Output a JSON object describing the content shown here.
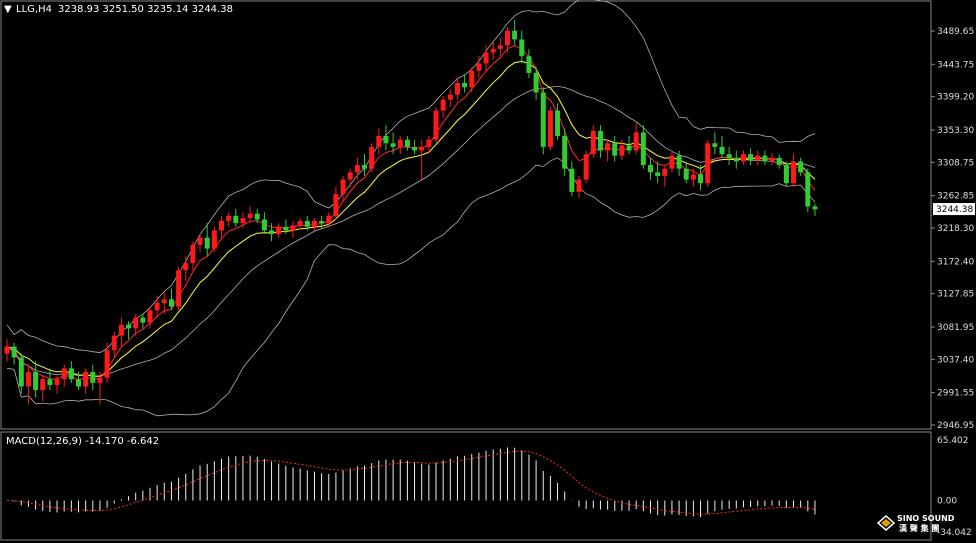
{
  "header": {
    "symbol": "LLG,H4",
    "ohlc": "3238.93 3251.50 3235.14 3244.38"
  },
  "chart_data": {
    "type": "candlestick",
    "price_axis": {
      "ticks": [
        "3489.65",
        "3443.75",
        "3399.20",
        "3353.30",
        "3308.75",
        "3262.85",
        "3218.30",
        "3172.40",
        "3127.85",
        "3081.95",
        "3037.40",
        "2991.55",
        "2946.95"
      ],
      "current_price": "3244.38",
      "ylim": [
        2946.95,
        3489.65
      ]
    },
    "candles": [
      [
        3045,
        3065,
        3035,
        3055
      ],
      [
        3055,
        3060,
        3030,
        3040
      ],
      [
        3040,
        3045,
        2990,
        3000
      ],
      [
        3000,
        3030,
        2975,
        3020
      ],
      [
        3020,
        3035,
        2985,
        2995
      ],
      [
        2995,
        3015,
        2980,
        3010
      ],
      [
        3010,
        3025,
        2995,
        3002
      ],
      [
        3002,
        3015,
        2990,
        3010
      ],
      [
        3010,
        3030,
        3000,
        3025
      ],
      [
        3025,
        3035,
        3005,
        3010
      ],
      [
        3010,
        3020,
        2995,
        3000
      ],
      [
        3000,
        3025,
        2990,
        3020
      ],
      [
        3020,
        3030,
        2995,
        3005
      ],
      [
        3005,
        3020,
        2975,
        3012
      ],
      [
        3012,
        3060,
        3005,
        3050
      ],
      [
        3050,
        3075,
        3040,
        3070
      ],
      [
        3070,
        3095,
        3055,
        3085
      ],
      [
        3085,
        3090,
        3065,
        3080
      ],
      [
        3080,
        3100,
        3070,
        3095
      ],
      [
        3095,
        3100,
        3080,
        3088
      ],
      [
        3088,
        3110,
        3080,
        3105
      ],
      [
        3105,
        3125,
        3095,
        3115
      ],
      [
        3115,
        3130,
        3100,
        3120
      ],
      [
        3120,
        3135,
        3105,
        3110
      ],
      [
        3110,
        3165,
        3105,
        3160
      ],
      [
        3160,
        3180,
        3145,
        3170
      ],
      [
        3170,
        3200,
        3160,
        3195
      ],
      [
        3195,
        3210,
        3185,
        3205
      ],
      [
        3205,
        3225,
        3180,
        3190
      ],
      [
        3190,
        3220,
        3185,
        3215
      ],
      [
        3215,
        3235,
        3205,
        3228
      ],
      [
        3228,
        3240,
        3220,
        3235
      ],
      [
        3235,
        3245,
        3220,
        3225
      ],
      [
        3225,
        3240,
        3218,
        3232
      ],
      [
        3232,
        3248,
        3225,
        3238
      ],
      [
        3238,
        3245,
        3225,
        3230
      ],
      [
        3230,
        3240,
        3210,
        3215
      ],
      [
        3215,
        3225,
        3200,
        3210
      ],
      [
        3210,
        3225,
        3205,
        3220
      ],
      [
        3220,
        3230,
        3210,
        3215
      ],
      [
        3215,
        3228,
        3205,
        3222
      ],
      [
        3222,
        3232,
        3215,
        3228
      ],
      [
        3228,
        3235,
        3215,
        3220
      ],
      [
        3220,
        3232,
        3212,
        3228
      ],
      [
        3228,
        3235,
        3218,
        3225
      ],
      [
        3225,
        3240,
        3220,
        3235
      ],
      [
        3235,
        3275,
        3230,
        3265
      ],
      [
        3265,
        3290,
        3255,
        3285
      ],
      [
        3285,
        3300,
        3275,
        3295
      ],
      [
        3295,
        3315,
        3285,
        3305
      ],
      [
        3305,
        3320,
        3290,
        3300
      ],
      [
        3300,
        3335,
        3295,
        3330
      ],
      [
        3330,
        3355,
        3320,
        3345
      ],
      [
        3345,
        3360,
        3325,
        3335
      ],
      [
        3335,
        3350,
        3320,
        3330
      ],
      [
        3330,
        3345,
        3320,
        3340
      ],
      [
        3340,
        3345,
        3325,
        3330
      ],
      [
        3330,
        3340,
        3320,
        3325
      ],
      [
        3325,
        3340,
        3285,
        3330
      ],
      [
        3330,
        3345,
        3320,
        3340
      ],
      [
        3340,
        3385,
        3335,
        3380
      ],
      [
        3380,
        3400,
        3370,
        3395
      ],
      [
        3395,
        3410,
        3385,
        3402
      ],
      [
        3402,
        3425,
        3395,
        3418
      ],
      [
        3418,
        3430,
        3405,
        3412
      ],
      [
        3412,
        3440,
        3405,
        3435
      ],
      [
        3435,
        3455,
        3425,
        3445
      ],
      [
        3445,
        3470,
        3435,
        3460
      ],
      [
        3460,
        3475,
        3450,
        3465
      ],
      [
        3465,
        3480,
        3455,
        3470
      ],
      [
        3470,
        3495,
        3460,
        3490
      ],
      [
        3490,
        3505,
        3470,
        3478
      ],
      [
        3478,
        3490,
        3445,
        3455
      ],
      [
        3455,
        3465,
        3425,
        3432
      ],
      [
        3432,
        3440,
        3395,
        3405
      ],
      [
        3405,
        3412,
        3320,
        3330
      ],
      [
        3330,
        3385,
        3325,
        3380
      ],
      [
        3380,
        3390,
        3340,
        3345
      ],
      [
        3345,
        3355,
        3290,
        3300
      ],
      [
        3300,
        3310,
        3262,
        3268
      ],
      [
        3268,
        3290,
        3260,
        3285
      ],
      [
        3285,
        3325,
        3280,
        3320
      ],
      [
        3320,
        3360,
        3315,
        3352
      ],
      [
        3352,
        3360,
        3315,
        3325
      ],
      [
        3325,
        3340,
        3310,
        3335
      ],
      [
        3335,
        3345,
        3310,
        3318
      ],
      [
        3318,
        3340,
        3312,
        3332
      ],
      [
        3332,
        3345,
        3320,
        3325
      ],
      [
        3325,
        3365,
        3320,
        3350
      ],
      [
        3350,
        3360,
        3300,
        3305
      ],
      [
        3305,
        3315,
        3285,
        3295
      ],
      [
        3295,
        3310,
        3280,
        3290
      ],
      [
        3290,
        3305,
        3275,
        3300
      ],
      [
        3300,
        3325,
        3295,
        3318
      ],
      [
        3318,
        3325,
        3290,
        3300
      ],
      [
        3300,
        3310,
        3280,
        3285
      ],
      [
        3285,
        3300,
        3275,
        3292
      ],
      [
        3292,
        3305,
        3270,
        3280
      ],
      [
        3280,
        3340,
        3275,
        3335
      ],
      [
        3335,
        3350,
        3320,
        3330
      ],
      [
        3330,
        3345,
        3315,
        3320
      ],
      [
        3320,
        3330,
        3305,
        3315
      ],
      [
        3315,
        3325,
        3300,
        3310
      ],
      [
        3310,
        3325,
        3305,
        3320
      ],
      [
        3320,
        3328,
        3305,
        3312
      ],
      [
        3312,
        3325,
        3305,
        3318
      ],
      [
        3318,
        3325,
        3305,
        3310
      ],
      [
        3310,
        3322,
        3305,
        3315
      ],
      [
        3315,
        3320,
        3300,
        3305
      ],
      [
        3305,
        3310,
        3275,
        3280
      ],
      [
        3280,
        3320,
        3275,
        3310
      ],
      [
        3310,
        3315,
        3290,
        3295
      ],
      [
        3295,
        3300,
        3240,
        3248
      ],
      [
        3248,
        3252,
        3235,
        3244
      ]
    ],
    "indicator": {
      "label": "MACD(12,26,9) -14.170 -6.642",
      "ticks": [
        "65.402",
        "0.00",
        "-34.042"
      ],
      "ylim": [
        -34.042,
        65.402
      ]
    }
  },
  "branding": {
    "logo_text": "SINO SOUND",
    "logo_sub": "漢 聲 集 團"
  }
}
